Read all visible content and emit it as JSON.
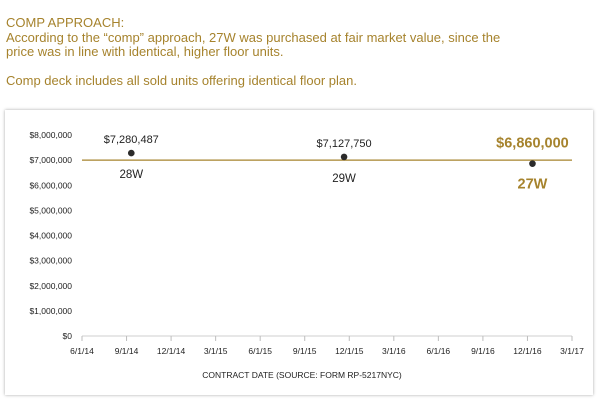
{
  "header": {
    "title": "COMP APPROACH:",
    "line1": "According to the “comp” approach, 27W was purchased at fair market value, since the",
    "line2": "price was in line with identical, higher floor units.",
    "note": "Comp deck includes all sold units offering identical floor plan."
  },
  "colors": {
    "accent": "#a6832d",
    "point": "#2b2b2b",
    "axis_text": "#222222",
    "grid": "#dddddd"
  },
  "chart_data": {
    "type": "scatter",
    "title": "",
    "xlabel": "CONTRACT DATE (SOURCE: FORM RP-5217NYC)",
    "ylabel": "",
    "x_ticks": [
      "6/1/14",
      "9/1/14",
      "12/1/14",
      "3/1/15",
      "6/1/15",
      "9/1/15",
      "12/1/15",
      "3/1/16",
      "6/1/16",
      "9/1/16",
      "12/1/16",
      "3/1/17"
    ],
    "y_ticks": [
      "$0",
      "$1,000,000",
      "$2,000,000",
      "$3,000,000",
      "$4,000,000",
      "$5,000,000",
      "$6,000,000",
      "$7,000,000",
      "$8,000,000"
    ],
    "xlim": [
      "2014-06-01",
      "2017-03-01"
    ],
    "ylim": [
      0,
      8000000
    ],
    "reference_line": {
      "y": 7000000
    },
    "points": [
      {
        "x": "2014-09-10",
        "y": 7280487,
        "value_label": "$7,280,487",
        "name": "28W",
        "highlight": false
      },
      {
        "x": "2015-11-20",
        "y": 7127750,
        "value_label": "$7,127,750",
        "name": "29W",
        "highlight": false
      },
      {
        "x": "2016-12-10",
        "y": 6860000,
        "value_label": "$6,860,000",
        "name": "27W",
        "highlight": true
      }
    ]
  }
}
